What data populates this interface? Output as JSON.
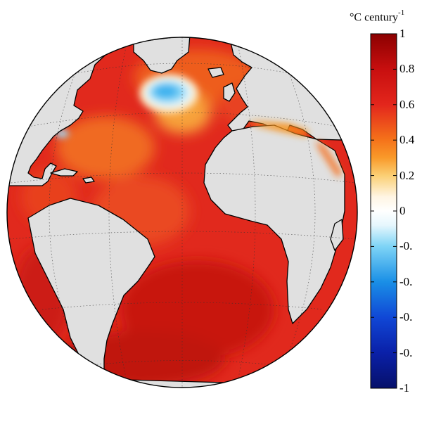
{
  "colorbar": {
    "unit_base": "°C century",
    "unit_exp": "-1",
    "ticks": [
      "1",
      "0.8",
      "0.6",
      "0.4",
      "0.2",
      "0",
      "-0.",
      "-0.",
      "-0.",
      "-0.",
      "-1"
    ],
    "tick_values": [
      1,
      0.8,
      0.6,
      0.4,
      0.2,
      0,
      -0.2,
      -0.4,
      -0.6,
      -0.8,
      -1
    ],
    "range": [
      -1,
      1
    ],
    "colors": {
      "1": "#8b0000",
      "0.8": "#c80f0f",
      "0.6": "#e3261c",
      "0.4": "#f5731a",
      "0.3": "#f99a2a",
      "0.2": "#fbcf74",
      "0.08": "#fff5e3",
      "0": "#ffffff",
      "-0.08": "#e6f7fd",
      "-0.2": "#7ed4f6",
      "-0.4": "#1a8fe6",
      "-0.6": "#1047d6",
      "-0.8": "#0a20a8",
      "-1": "#06106a"
    }
  },
  "map": {
    "projection": "orthographic-globe",
    "land_color": "#e0e0e0",
    "ocean_base_color": "#e1291d"
  }
}
